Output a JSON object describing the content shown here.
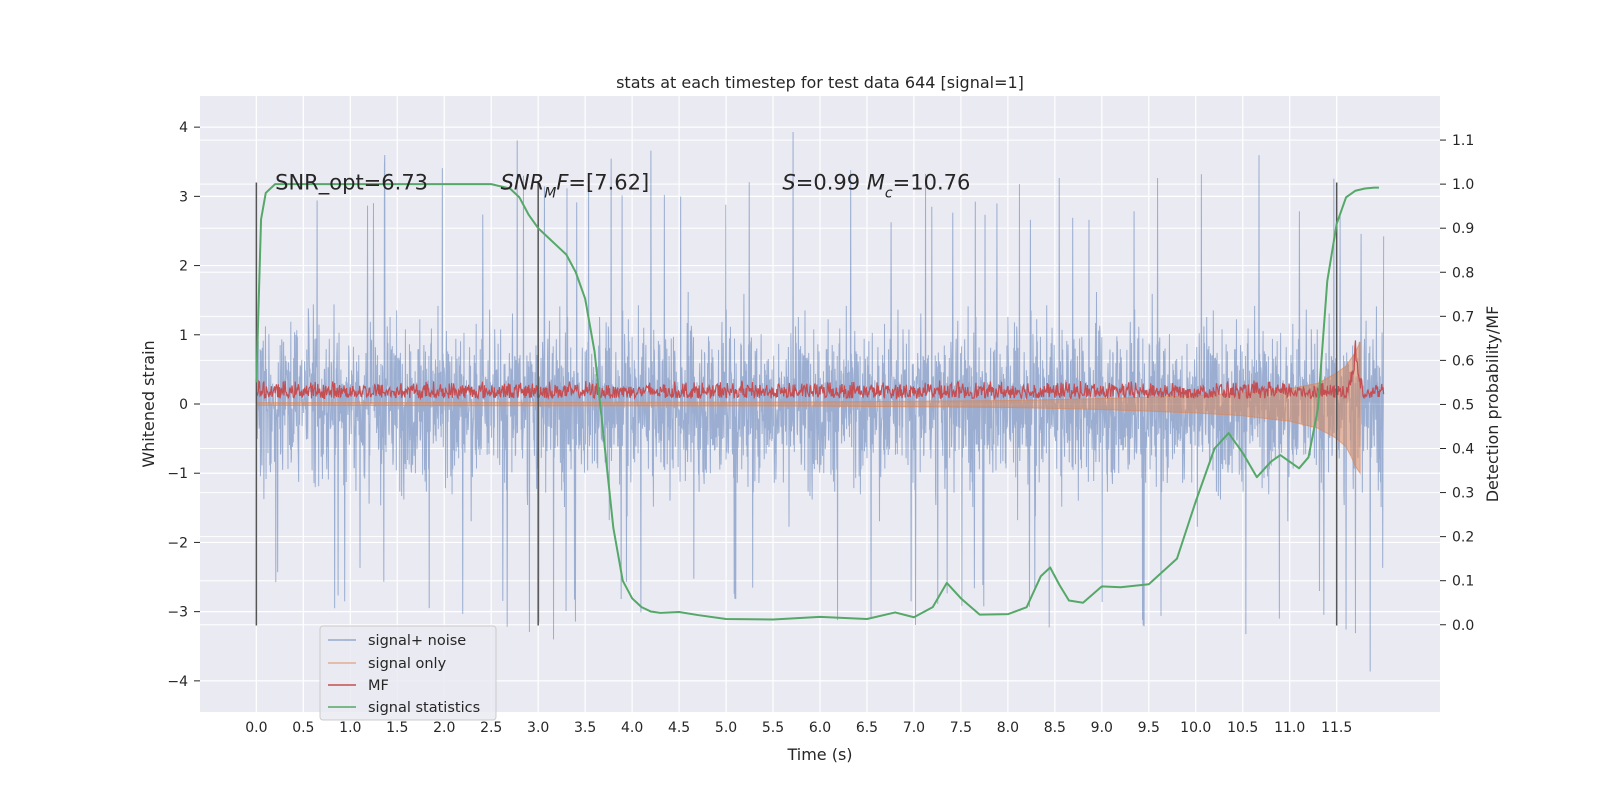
{
  "chart_data": {
    "type": "line",
    "title": "stats at each timestep for test data 644 [signal=1]",
    "xlabel": "Time (s)",
    "ylabel": "Whitened strain",
    "ylabel_right": "Detection probability/MF",
    "xlim": [
      -0.6,
      12.6
    ],
    "ylim": [
      -4.45,
      4.45
    ],
    "ylim_right": [
      -0.198,
      1.2
    ],
    "x_ticks": [
      0.0,
      0.5,
      1.0,
      1.5,
      2.0,
      2.5,
      3.0,
      3.5,
      4.0,
      4.5,
      5.0,
      5.5,
      6.0,
      6.5,
      7.0,
      7.5,
      8.0,
      8.5,
      9.0,
      9.5,
      10.0,
      10.5,
      11.0,
      11.5
    ],
    "x_tick_labels": [
      "0.0",
      "0.5",
      "1.0",
      "1.5",
      "2.0",
      "2.5",
      "3.0",
      "3.5",
      "4.0",
      "4.5",
      "5.0",
      "5.5",
      "6.0",
      "6.5",
      "7.0",
      "7.5",
      "8.0",
      "8.5",
      "9.0",
      "9.5",
      "10.0",
      "10.5",
      "11.0",
      "11.5"
    ],
    "y_ticks": [
      4,
      3,
      2,
      1,
      0,
      -1,
      -2,
      -3,
      -4
    ],
    "y_tick_labels": [
      "4",
      "3",
      "2",
      "1",
      "0",
      "−1",
      "−2",
      "−3",
      "−4"
    ],
    "y_right_ticks": [
      1.1,
      1.0,
      0.9,
      0.8,
      0.7,
      0.6,
      0.5,
      0.4,
      0.3,
      0.2,
      0.1,
      0.0
    ],
    "y_right_tick_labels": [
      "1.1",
      "1.0",
      "0.9",
      "0.8",
      "0.7",
      "0.6",
      "0.5",
      "0.4",
      "0.3",
      "0.2",
      "0.1",
      "0.0"
    ],
    "grid": true,
    "legend_position": "lower-left",
    "vertical_markers": [
      0.0,
      3.0,
      11.5
    ],
    "vertical_marker_range": [
      -3.2,
      3.2
    ],
    "annotations": [
      {
        "text": "SNR_opt=6.73",
        "x": 0.2,
        "y": 3.2
      },
      {
        "text_parts": [
          {
            "t": "SNR",
            "italic": true
          },
          {
            "t": "M",
            "italic": true,
            "sub": true
          },
          {
            "t": "F",
            "italic": true
          },
          {
            "t": "=[7.62]",
            "italic": false
          }
        ],
        "x": 2.6,
        "y": 3.2
      },
      {
        "text_parts": [
          {
            "t": "S",
            "italic": true
          },
          {
            "t": "=0.99   ",
            "italic": false
          },
          {
            "t": "M",
            "italic": true
          },
          {
            "t": "c",
            "italic": true,
            "sub": true
          },
          {
            "t": "=10.76",
            "italic": false
          }
        ],
        "x": 5.6,
        "y": 3.2
      }
    ],
    "series": [
      {
        "name": "signal+ noise",
        "color": "#4c72b0",
        "axis": "left",
        "x_range": [
          0.0,
          12.0
        ],
        "description_range": [
          -3.8,
          4.1
        ],
        "upper_peaks": [
          [
            0.0,
            3.2
          ],
          [
            0.43,
            3.6
          ],
          [
            0.9,
            3.3
          ],
          [
            1.55,
            3.8
          ],
          [
            2.28,
            3.4
          ],
          [
            2.95,
            4.0
          ],
          [
            3.35,
            3.7
          ],
          [
            3.97,
            4.0
          ],
          [
            4.62,
            3.6
          ],
          [
            5.25,
            3.5
          ],
          [
            5.6,
            4.1
          ],
          [
            6.15,
            3.6
          ],
          [
            6.95,
            3.3
          ],
          [
            7.6,
            3.5
          ],
          [
            8.45,
            3.5
          ],
          [
            8.95,
            3.2
          ],
          [
            9.65,
            3.6
          ],
          [
            10.2,
            3.3
          ],
          [
            10.5,
            3.8
          ],
          [
            10.95,
            3.7
          ],
          [
            11.7,
            3.1
          ],
          [
            12.0,
            2.9
          ]
        ],
        "lower_peaks": [
          [
            0.0,
            -3.2
          ],
          [
            0.65,
            -3.0
          ],
          [
            1.3,
            -2.9
          ],
          [
            2.0,
            -3.1
          ],
          [
            2.92,
            -3.8
          ],
          [
            3.5,
            -3.2
          ],
          [
            4.6,
            -3.0
          ],
          [
            5.45,
            -3.1
          ],
          [
            6.55,
            -3.3
          ],
          [
            7.0,
            -3.6
          ],
          [
            7.55,
            -3.0
          ],
          [
            8.35,
            -3.3
          ],
          [
            9.55,
            -3.5
          ],
          [
            10.0,
            -3.8
          ],
          [
            10.75,
            -3.3
          ],
          [
            11.35,
            -3.4
          ],
          [
            11.85,
            -4.1
          ],
          [
            12.0,
            -2.6
          ]
        ]
      },
      {
        "name": "signal only",
        "color": "#dd8452",
        "axis": "left",
        "x": [
          0.0,
          6.0,
          8.0,
          9.0,
          10.0,
          10.5,
          11.0,
          11.3,
          11.5,
          11.6,
          11.65,
          11.7,
          11.75
        ],
        "upper": [
          0.02,
          0.03,
          0.05,
          0.08,
          0.12,
          0.16,
          0.22,
          0.3,
          0.45,
          0.55,
          0.65,
          0.75,
          0.9
        ],
        "lower": [
          -0.02,
          -0.03,
          -0.05,
          -0.08,
          -0.13,
          -0.17,
          -0.25,
          -0.35,
          -0.5,
          -0.62,
          -0.75,
          -0.9,
          -1.0
        ]
      },
      {
        "name": "MF",
        "color": "#c44e52",
        "axis": "left",
        "x_range": [
          0.0,
          12.0
        ],
        "baseline": 0.08,
        "typical_top": 0.35,
        "peak": [
          11.7,
          1.0
        ]
      },
      {
        "name": "signal statistics",
        "color": "#55a868",
        "axis": "right",
        "x": [
          0.0,
          0.05,
          0.1,
          0.15,
          0.2,
          0.5,
          1.0,
          2.0,
          2.5,
          2.7,
          2.8,
          2.9,
          3.0,
          3.1,
          3.2,
          3.3,
          3.4,
          3.5,
          3.6,
          3.7,
          3.8,
          3.9,
          4.0,
          4.1,
          4.2,
          4.3,
          4.5,
          4.7,
          5.0,
          5.5,
          6.0,
          6.5,
          6.8,
          7.0,
          7.2,
          7.35,
          7.5,
          7.7,
          8.0,
          8.2,
          8.35,
          8.45,
          8.55,
          8.65,
          8.8,
          9.0,
          9.2,
          9.5,
          9.8,
          10.0,
          10.2,
          10.35,
          10.5,
          10.65,
          10.8,
          10.9,
          11.0,
          11.1,
          11.2,
          11.3,
          11.4,
          11.5,
          11.6,
          11.7,
          11.8,
          11.9,
          11.95
        ],
        "y": [
          0.55,
          0.92,
          0.98,
          0.99,
          1.0,
          1.0,
          1.0,
          1.0,
          1.0,
          0.99,
          0.97,
          0.93,
          0.9,
          0.88,
          0.86,
          0.84,
          0.8,
          0.74,
          0.62,
          0.42,
          0.22,
          0.1,
          0.06,
          0.04,
          0.03,
          0.027,
          0.029,
          0.022,
          0.013,
          0.012,
          0.018,
          0.013,
          0.028,
          0.017,
          0.04,
          0.095,
          0.06,
          0.023,
          0.024,
          0.04,
          0.11,
          0.13,
          0.09,
          0.055,
          0.05,
          0.087,
          0.085,
          0.092,
          0.15,
          0.28,
          0.4,
          0.435,
          0.39,
          0.335,
          0.37,
          0.385,
          0.37,
          0.355,
          0.38,
          0.49,
          0.78,
          0.91,
          0.97,
          0.985,
          0.99,
          0.992,
          0.992
        ]
      }
    ]
  }
}
